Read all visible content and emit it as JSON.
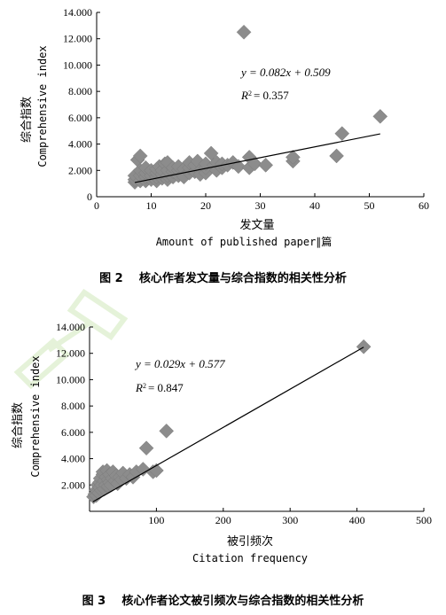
{
  "chart_data": [
    {
      "type": "scatter",
      "ylabel_cn": "综合指数",
      "ylabel_en": "Comprehensive index",
      "xlabel_cn": "发文量",
      "xlabel_en": "Amount of published paper∥篇",
      "equation": "y = 0.082x + 0.509",
      "r2_label": "R",
      "r2_value": "= 0.357",
      "caption_no": "图 2",
      "caption_text": "核心作者发文量与综合指数的相关性分析",
      "xlim": [
        0,
        60
      ],
      "ylim": [
        0,
        14
      ],
      "xticks": [
        0,
        10,
        20,
        30,
        40,
        50,
        60
      ],
      "yticks": [
        0,
        2,
        4,
        6,
        8,
        10,
        12,
        14
      ],
      "yticklabels": [
        "0",
        "2.000",
        "4.000",
        "6.000",
        "8.000",
        "10.000",
        "12.000",
        "14.000"
      ],
      "trendline": {
        "slope": 0.082,
        "intercept": 0.509,
        "x_range": [
          7,
          52
        ]
      },
      "points": [
        [
          7,
          1.1
        ],
        [
          7,
          1.3
        ],
        [
          7,
          1.6
        ],
        [
          7.5,
          2.8
        ],
        [
          8,
          3.1
        ],
        [
          8,
          1.2
        ],
        [
          8,
          1.6
        ],
        [
          8,
          2.0
        ],
        [
          9,
          1.2
        ],
        [
          9,
          1.5
        ],
        [
          9,
          1.8
        ],
        [
          9,
          2.2
        ],
        [
          10,
          1.3
        ],
        [
          10,
          1.6
        ],
        [
          10,
          2.0
        ],
        [
          11,
          1.2
        ],
        [
          11,
          1.5
        ],
        [
          11,
          1.8
        ],
        [
          11,
          2.1
        ],
        [
          11.5,
          2.3
        ],
        [
          12,
          1.4
        ],
        [
          12,
          1.7
        ],
        [
          12,
          2.0
        ],
        [
          12.5,
          2.5
        ],
        [
          13,
          1.3
        ],
        [
          13,
          1.6
        ],
        [
          13,
          2.0
        ],
        [
          13,
          2.6
        ],
        [
          14,
          1.5
        ],
        [
          14,
          1.9
        ],
        [
          14,
          2.2
        ],
        [
          15,
          1.6
        ],
        [
          15,
          2.0
        ],
        [
          15,
          2.3
        ],
        [
          16,
          1.7
        ],
        [
          16,
          2.1
        ],
        [
          16,
          1.5
        ],
        [
          17,
          1.8
        ],
        [
          17,
          2.2
        ],
        [
          17,
          2.6
        ],
        [
          18,
          1.9
        ],
        [
          18,
          2.4
        ],
        [
          18.5,
          2.7
        ],
        [
          19,
          2.0
        ],
        [
          19,
          1.7
        ],
        [
          20,
          1.8
        ],
        [
          20,
          2.2
        ],
        [
          20,
          2.5
        ],
        [
          21,
          3.3
        ],
        [
          21.5,
          2.4
        ],
        [
          22,
          2.0
        ],
        [
          22,
          2.6
        ],
        [
          23,
          2.2
        ],
        [
          23,
          2.5
        ],
        [
          24,
          2.4
        ],
        [
          25,
          2.6
        ],
        [
          26,
          2.3
        ],
        [
          27,
          12.5
        ],
        [
          28,
          3.0
        ],
        [
          28,
          2.2
        ],
        [
          29,
          2.5
        ],
        [
          31,
          2.4
        ],
        [
          36,
          2.7
        ],
        [
          36,
          3.0
        ],
        [
          44,
          3.1
        ],
        [
          45,
          4.8
        ],
        [
          52,
          6.1
        ]
      ]
    },
    {
      "type": "scatter",
      "ylabel_cn": "综合指数",
      "ylabel_en": "Comprehensive index",
      "xlabel_cn": "被引频次",
      "xlabel_en": "Citation frequency",
      "equation": "y = 0.029x + 0.577",
      "r2_label": "R",
      "r2_value": "= 0.847",
      "caption_no": "图 3",
      "caption_text": "核心作者论文被引频次与综合指数的相关性分析",
      "xlim": [
        0,
        500
      ],
      "ylim": [
        0,
        14
      ],
      "xticks": [
        100,
        200,
        300,
        400,
        500
      ],
      "yticks": [
        2,
        4,
        6,
        8,
        10,
        12,
        14
      ],
      "yticklabels": [
        "2.000",
        "4.000",
        "6.000",
        "8.000",
        "10.000",
        "12.000",
        "14.000"
      ],
      "trendline": {
        "slope": 0.029,
        "intercept": 0.577,
        "x_range": [
          5,
          410
        ]
      },
      "points": [
        [
          6,
          1.1
        ],
        [
          8,
          1.3
        ],
        [
          10,
          1.2
        ],
        [
          10,
          1.6
        ],
        [
          12,
          1.5
        ],
        [
          12,
          2.0
        ],
        [
          14,
          1.4
        ],
        [
          15,
          1.8
        ],
        [
          15,
          2.2
        ],
        [
          16,
          2.5
        ],
        [
          18,
          1.6
        ],
        [
          18,
          2.0
        ],
        [
          20,
          2.8
        ],
        [
          20,
          3.0
        ],
        [
          22,
          1.7
        ],
        [
          22,
          2.3
        ],
        [
          24,
          2.0
        ],
        [
          25,
          2.6
        ],
        [
          26,
          3.1
        ],
        [
          28,
          1.9
        ],
        [
          28,
          2.4
        ],
        [
          30,
          2.2
        ],
        [
          30,
          2.8
        ],
        [
          32,
          2.0
        ],
        [
          34,
          2.5
        ],
        [
          35,
          3.0
        ],
        [
          38,
          2.3
        ],
        [
          40,
          2.7
        ],
        [
          42,
          2.1
        ],
        [
          45,
          2.6
        ],
        [
          48,
          2.4
        ],
        [
          50,
          2.9
        ],
        [
          55,
          2.5
        ],
        [
          60,
          2.8
        ],
        [
          65,
          2.6
        ],
        [
          70,
          3.0
        ],
        [
          80,
          3.2
        ],
        [
          85,
          4.8
        ],
        [
          95,
          3.0
        ],
        [
          100,
          3.1
        ],
        [
          115,
          6.1
        ],
        [
          410,
          12.5
        ]
      ]
    }
  ]
}
